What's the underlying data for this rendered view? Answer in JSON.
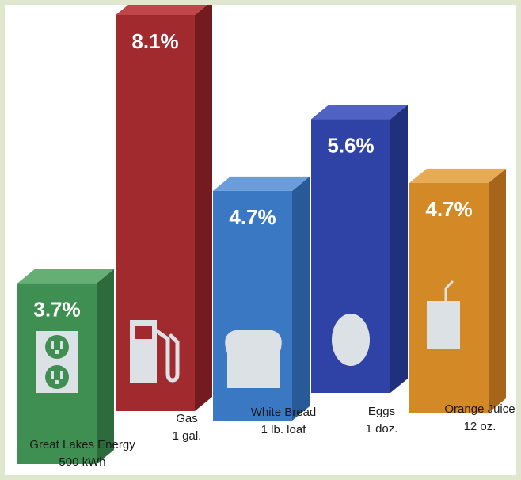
{
  "chart_data": {
    "type": "bar",
    "title": "",
    "xlabel": "",
    "ylabel": "",
    "ylim": [
      0,
      8.1
    ],
    "grid": false,
    "legend": "none",
    "categories": [
      "Great Lakes Energy\n500 kWh",
      "Gas\n1 gal.",
      "White Bread\n1 lb. loaf",
      "Eggs\n1 doz.",
      "Orange Juice\n12 oz."
    ],
    "category_lines": [
      [
        "Great Lakes Energy",
        "500 kWh"
      ],
      [
        "Gas",
        "1 gal."
      ],
      [
        "White Bread",
        "1 lb. loaf"
      ],
      [
        "Eggs",
        "1 doz."
      ],
      [
        "Orange Juice",
        "12 oz."
      ]
    ],
    "values": [
      3.7,
      8.1,
      4.7,
      5.6,
      4.7
    ],
    "value_labels": [
      "3.7%",
      "8.1%",
      "4.7%",
      "5.6%",
      "4.7%"
    ],
    "icons": [
      "electrical-outlet-icon",
      "gas-pump-icon",
      "bread-slice-icon",
      "egg-icon",
      "juice-box-icon"
    ],
    "colors": {
      "front": [
        "#3f8f52",
        "#a02a2d",
        "#3b78c4",
        "#2f43a6",
        "#d38a26"
      ],
      "side": [
        "#2d6b3c",
        "#741b1f",
        "#295a98",
        "#20307c",
        "#a6651a"
      ],
      "top": [
        "#65ae74",
        "#c1464a",
        "#6b9ddb",
        "#5163c2",
        "#e7ab55"
      ],
      "icon": "#dce1e6",
      "background": "#dfe8cf"
    }
  }
}
